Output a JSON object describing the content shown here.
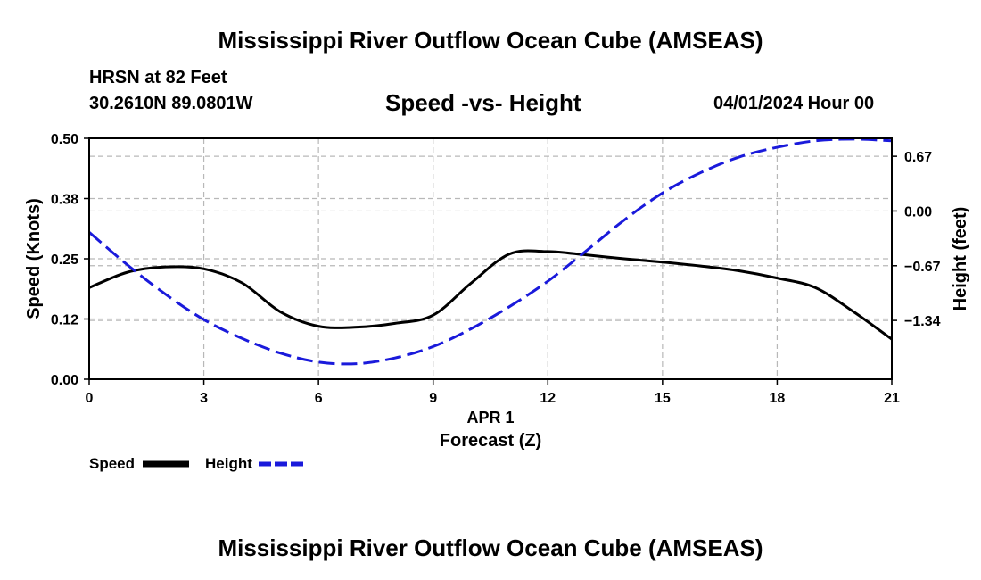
{
  "header": {
    "title": "Mississippi River Outflow Ocean Cube (AMSEAS)",
    "station": "HRSN at 82 Feet",
    "coords": "30.2610N  89.0801W",
    "subtitle": "Speed -vs- Height",
    "datetime": "04/01/2024 Hour 00"
  },
  "footer": {
    "title": "Mississippi River Outflow Ocean Cube (AMSEAS)"
  },
  "colors": {
    "speed": "#000000",
    "height": "#1a1adb",
    "grid": "#b8b8b8"
  },
  "chart_data": {
    "type": "line",
    "title": "Speed -vs- Height",
    "xlabel": "Forecast (Z)",
    "xlabel_date": "APR 1",
    "ylabel": "Speed (Knots)",
    "y2label": "Height (feet)",
    "grid": true,
    "legend_position": "bottom-left",
    "xlim": [
      0,
      21
    ],
    "ylim": [
      0,
      0.5
    ],
    "y2lim": [
      -2.06,
      0.89
    ],
    "x_ticks": [
      0,
      3,
      6,
      9,
      12,
      15,
      18,
      21
    ],
    "x_tick_labels": [
      "0",
      "3",
      "6",
      "9",
      "12",
      "15",
      "18",
      "21"
    ],
    "y_ticks": [
      0,
      0.125,
      0.25,
      0.375,
      0.5
    ],
    "y_tick_labels": [
      "0.00",
      "0.12",
      "0.25",
      "0.38",
      "0.50"
    ],
    "y2_ticks": [
      0.67,
      0.0,
      -0.67,
      -1.34
    ],
    "y2_tick_labels": [
      "0.67",
      "0.00",
      "−0.67",
      "−1.34"
    ],
    "series": [
      {
        "name": "Speed",
        "axis": "left",
        "style": "solid",
        "x": [
          0,
          1,
          2,
          3,
          4,
          5,
          6,
          7,
          8,
          9,
          10,
          11,
          12,
          13,
          14,
          15,
          16,
          17,
          18,
          19,
          20,
          21
        ],
        "values": [
          0.19,
          0.222,
          0.233,
          0.229,
          0.2,
          0.14,
          0.11,
          0.108,
          0.116,
          0.133,
          0.2,
          0.26,
          0.265,
          0.258,
          0.25,
          0.243,
          0.235,
          0.225,
          0.21,
          0.19,
          0.14,
          0.083
        ]
      },
      {
        "name": "Height",
        "axis": "right",
        "style": "dashed",
        "x": [
          0,
          1,
          2,
          3,
          4,
          5,
          6,
          7,
          8,
          9,
          10,
          11,
          12,
          13,
          14,
          15,
          16,
          17,
          18,
          19,
          20,
          21
        ],
        "values": [
          -0.26,
          -0.66,
          -1.02,
          -1.33,
          -1.56,
          -1.74,
          -1.85,
          -1.87,
          -1.8,
          -1.66,
          -1.44,
          -1.17,
          -0.86,
          -0.49,
          -0.11,
          0.22,
          0.47,
          0.66,
          0.78,
          0.86,
          0.88,
          0.86
        ]
      }
    ]
  }
}
